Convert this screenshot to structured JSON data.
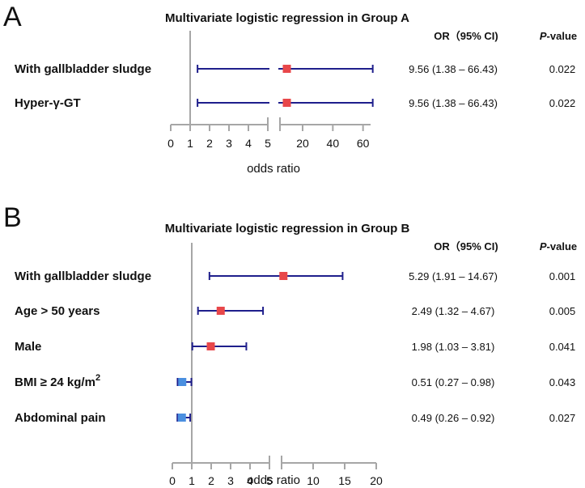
{
  "colors": {
    "ci_line": "#1f1f8c",
    "marker_up": "#e8474a",
    "marker_down": "#4a8fe0",
    "axis": "#a6a6a6"
  },
  "chart_data": [
    {
      "type": "forest",
      "panel": "A",
      "title": "Multivariate logistic regression in Group A",
      "header_or": "OR（95% CI)",
      "header_p_italic": "P",
      "header_p_rest": "-value",
      "xlabel": "odds ratio",
      "reference_line": 1,
      "axis_segments": [
        {
          "range": [
            0,
            5
          ],
          "ticks": [
            "0",
            "1",
            "2",
            "3",
            "4",
            "5"
          ]
        },
        {
          "range": [
            5,
            65
          ],
          "ticks": [
            "20",
            "40",
            "60"
          ]
        }
      ],
      "rows": [
        {
          "label": "With gallbladder sludge",
          "or": 9.56,
          "lo": 1.38,
          "hi": 66.43,
          "or_text": "9.56 (1.38 – 66.43)",
          "p": "0.022"
        },
        {
          "label": "Hyper-γ-GT",
          "or": 9.56,
          "lo": 1.38,
          "hi": 66.43,
          "or_text": "9.56 (1.38 – 66.43)",
          "p": "0.022"
        }
      ]
    },
    {
      "type": "forest",
      "panel": "B",
      "title": "Multivariate logistic regression in Group B",
      "header_or": "OR（95% CI)",
      "header_p_italic": "P",
      "header_p_rest": "-value",
      "xlabel": "odds ratio",
      "reference_line": 1,
      "axis_segments": [
        {
          "range": [
            0,
            5
          ],
          "ticks": [
            "0",
            "1",
            "2",
            "3",
            "4",
            "5"
          ]
        },
        {
          "range": [
            5,
            20
          ],
          "ticks": [
            "10",
            "15",
            "20"
          ]
        }
      ],
      "rows": [
        {
          "label": "With gallbladder sludge",
          "or": 5.29,
          "lo": 1.91,
          "hi": 14.67,
          "or_text": "5.29 (1.91 – 14.67)",
          "p": "0.001"
        },
        {
          "label": "Age > 50 years",
          "or": 2.49,
          "lo": 1.32,
          "hi": 4.67,
          "or_text": "2.49 (1.32 – 4.67)",
          "p": "0.005"
        },
        {
          "label": "Male",
          "or": 1.98,
          "lo": 1.03,
          "hi": 3.81,
          "or_text": "1.98 (1.03 – 3.81)",
          "p": "0.041"
        },
        {
          "label": "BMI ≥ 24 kg/m",
          "label_sup": "2",
          "or": 0.51,
          "lo": 0.27,
          "hi": 0.98,
          "or_text": "0.51 (0.27 – 0.98)",
          "p": "0.043"
        },
        {
          "label": "Abdominal pain",
          "or": 0.49,
          "lo": 0.26,
          "hi": 0.92,
          "or_text": "0.49 (0.26 – 0.92)",
          "p": "0.027"
        }
      ]
    }
  ]
}
